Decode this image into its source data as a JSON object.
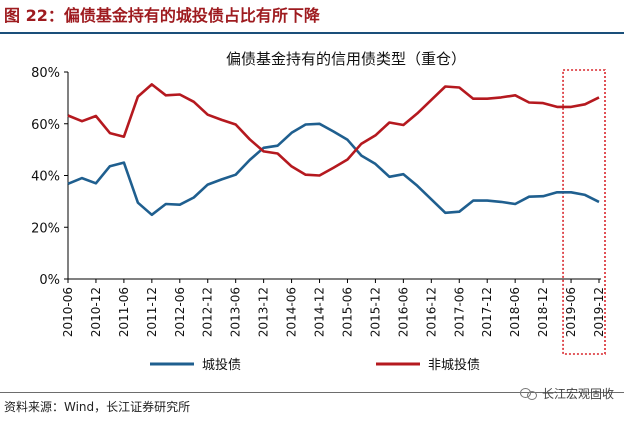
{
  "header": {
    "figure_title": "图 22：偏债基金持有的城投债占比有所下降"
  },
  "footer": {
    "source": "资料来源：Wind，长江证券研究所",
    "watermark": "长江宏观固收",
    "watermark_icon": "wechat-icon"
  },
  "colors": {
    "series_a": "#1f5f8f",
    "series_b": "#b5191f",
    "highlight": "#d9262c",
    "title_red": "#9e1b1f"
  },
  "chart_data": {
    "type": "line",
    "title": "偏债基金持有的信用债类型（重仓）",
    "xlabel": "",
    "ylabel": "",
    "ylim": [
      0,
      80
    ],
    "yticks": [
      0,
      20,
      40,
      60,
      80
    ],
    "ytick_format": "%",
    "grid": false,
    "legend_position": "bottom",
    "x": [
      "2010-06",
      "2010-09",
      "2010-12",
      "2011-03",
      "2011-06",
      "2011-09",
      "2011-12",
      "2012-03",
      "2012-06",
      "2012-09",
      "2012-12",
      "2013-03",
      "2013-06",
      "2013-09",
      "2013-12",
      "2014-03",
      "2014-06",
      "2014-09",
      "2014-12",
      "2015-03",
      "2015-06",
      "2015-09",
      "2015-12",
      "2016-03",
      "2016-06",
      "2016-09",
      "2016-12",
      "2017-03",
      "2017-06",
      "2017-09",
      "2017-12",
      "2018-03",
      "2018-06",
      "2018-09",
      "2018-12",
      "2019-03",
      "2019-06",
      "2019-09",
      "2019-12"
    ],
    "tick_labels": [
      "2010-06",
      "2010-12",
      "2011-06",
      "2011-12",
      "2012-06",
      "2012-12",
      "2013-06",
      "2013-12",
      "2014-06",
      "2014-12",
      "2015-06",
      "2015-12",
      "2016-06",
      "2016-12",
      "2017-06",
      "2017-12",
      "2018-06",
      "2018-12",
      "2019-06",
      "2019-12"
    ],
    "series": [
      {
        "name": "城投债",
        "values": [
          36.8,
          39.0,
          37.0,
          43.6,
          45.0,
          29.5,
          24.8,
          29.0,
          28.7,
          31.5,
          36.5,
          38.5,
          40.3,
          46.0,
          50.7,
          51.5,
          56.5,
          59.7,
          60.0,
          57.0,
          53.8,
          47.7,
          44.5,
          39.5,
          40.5,
          36.0,
          30.8,
          25.6,
          26.0,
          30.3,
          30.3,
          29.8,
          29.0,
          31.8,
          32.0,
          33.5,
          33.5,
          32.5,
          29.8
        ]
      },
      {
        "name": "非城投债",
        "values": [
          63.2,
          61.0,
          63.0,
          56.4,
          55.0,
          70.5,
          75.2,
          71.0,
          71.3,
          68.5,
          63.5,
          61.5,
          59.7,
          54.0,
          49.3,
          48.5,
          43.5,
          40.3,
          40.0,
          43.0,
          46.2,
          52.3,
          55.5,
          60.5,
          59.5,
          64.0,
          69.2,
          74.4,
          74.0,
          69.7,
          69.7,
          70.2,
          71.0,
          68.2,
          68.0,
          66.5,
          66.5,
          67.5,
          70.2
        ]
      }
    ],
    "highlight_range": [
      "2019-06",
      "2019-12"
    ]
  }
}
